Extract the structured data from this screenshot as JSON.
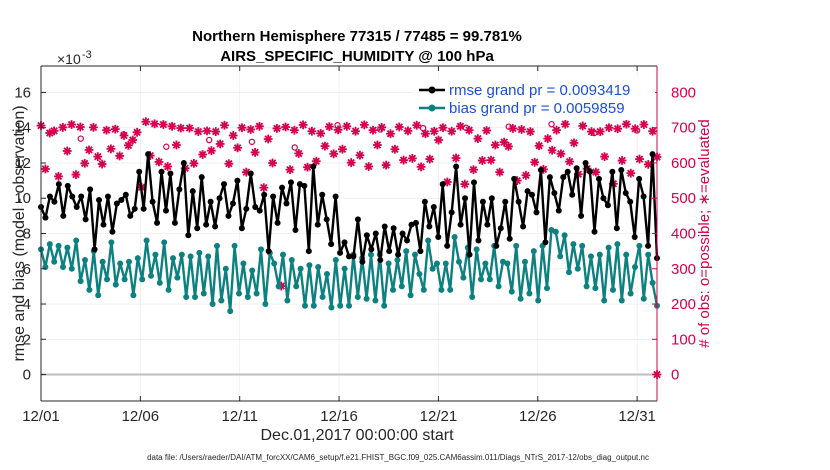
{
  "chart_data": {
    "type": "line",
    "title_line1": "Northern Hemisphere 77315 / 77485 = 99.781%",
    "title_line2": "AIRS_SPECIFIC_HUMIDITY @ 100 hPa",
    "xlabel": "Dec.01,2017 00:00:00 start",
    "ylabel": "rmse and bias (model - observation)",
    "ylabel_right": "# of obs: o=possible; ∗=evaluated",
    "y_exponent_base": "×10",
    "y_exponent": "-3",
    "footer": "data file: /Users/raeder/DAI/ATM_forcXX/CAM6_setup/f.e21.FHIST_BGC.f09_025.CAM6assim.011/Diags_NTrS_2017-12/obs_diag_output.nc",
    "x_ticks": [
      "12/01",
      "12/06",
      "12/11",
      "12/16",
      "12/21",
      "12/26",
      "12/31"
    ],
    "x_tick_days": [
      0,
      5,
      10,
      15,
      20,
      25,
      30
    ],
    "xlim": [
      0,
      31
    ],
    "y_ticks": [
      "0",
      "2",
      "4",
      "6",
      "8",
      "10",
      "12",
      "14",
      "16"
    ],
    "ylim": [
      -1.5,
      17.5
    ],
    "y2_ticks": [
      "0",
      "100",
      "200",
      "300",
      "400",
      "500",
      "600",
      "700",
      "800"
    ],
    "y2lim": [
      -75,
      875
    ],
    "colors": {
      "rmse": "#000000",
      "bias": "#0d8080",
      "obs": "#d6004e",
      "legend_text": "#1a4fd1",
      "zero_line": "#bdbdbd"
    },
    "series": [
      {
        "name": "rmse",
        "legend": "rmse grand pr = 0.0093419",
        "values": [
          9.5,
          8.9,
          10.1,
          9.8,
          10.8,
          9.0,
          10.7,
          10.1,
          9.5,
          10.1,
          8.8,
          10.5,
          7.1,
          9.9,
          8.5,
          10.1,
          8.1,
          9.7,
          9.9,
          10.2,
          9.0,
          9.4,
          11.5,
          9.4,
          12.5,
          9.8,
          8.6,
          11.5,
          9.3,
          11.4,
          8.6,
          10.5,
          12.0,
          7.9,
          10.4,
          8.3,
          11.2,
          8.5,
          9.8,
          8.4,
          10.0,
          10.8,
          9.0,
          9.7,
          11.0,
          8.3,
          9.4,
          11.4,
          9.5,
          9.3,
          10.2,
          7.0,
          10.1,
          8.6,
          10.6,
          9.7,
          10.9,
          8.2,
          10.8,
          10.7,
          7.0,
          11.8,
          8.5,
          10.2,
          8.8,
          7.4,
          10.1,
          6.9,
          7.5,
          6.7,
          6.7,
          8.8,
          6.4,
          7.9,
          7.1,
          8.0,
          6.5,
          8.4,
          7.0,
          8.3,
          6.8,
          8.0,
          7.6,
          8.5,
          8.6,
          7.0,
          9.8,
          8.4,
          9.5,
          7.8,
          10.8,
          7.3,
          9.2,
          11.8,
          8.5,
          10.0,
          6.8,
          10.9,
          7.6,
          9.8,
          8.5,
          10.0,
          7.3,
          8.3,
          9.8,
          7.7,
          11.1,
          9.8,
          8.4,
          10.4,
          10.2,
          9.2,
          11.6,
          7.5,
          11.2,
          10.3,
          9.3,
          11.2,
          11.5,
          10.2,
          11.7,
          9.0,
          12.0,
          11.5,
          8.1,
          11.1,
          10.0,
          9.6,
          11.5,
          8.3,
          11.6,
          10.3,
          9.8,
          7.8,
          11.1,
          10.1,
          7.3,
          12.5,
          6.6
        ]
      },
      {
        "name": "bias",
        "legend": "bias grand pr = 0.0059859",
        "values": [
          7.1,
          6.1,
          7.4,
          6.4,
          7.3,
          6.1,
          7.2,
          6.0,
          7.6,
          5.3,
          6.5,
          4.8,
          7.0,
          4.5,
          6.4,
          5.4,
          7.5,
          5.1,
          6.3,
          5.4,
          6.4,
          4.5,
          6.6,
          5.4,
          7.6,
          5.6,
          6.8,
          5.2,
          7.5,
          4.8,
          6.6,
          5.5,
          6.8,
          4.4,
          6.7,
          4.4,
          6.9,
          4.6,
          6.7,
          4.0,
          7.3,
          4.2,
          6.0,
          3.6,
          7.3,
          4.6,
          6.3,
          4.4,
          5.9,
          4.6,
          7.1,
          4.0,
          6.9,
          6.3,
          5.0,
          6.8,
          4.2,
          6.5,
          5.0,
          6.0,
          3.9,
          6.2,
          3.9,
          6.1,
          4.4,
          5.7,
          3.8,
          6.5,
          3.9,
          6.0,
          3.9,
          6.8,
          4.4,
          6.6,
          4.3,
          6.8,
          4.2,
          6.8,
          3.9,
          6.3,
          4.8,
          6.5,
          5.0,
          7.0,
          4.5,
          6.8,
          5.7,
          4.8,
          7.6,
          6.0,
          6.3,
          4.8,
          6.3,
          4.8,
          7.8,
          6.4,
          5.5,
          7.2,
          4.4,
          7.1,
          5.4,
          6.3,
          5.4,
          7.3,
          5.0,
          6.4,
          6.3,
          4.7,
          7.3,
          4.3,
          6.4,
          4.6,
          7.0,
          4.2,
          7.3,
          4.9,
          8.2,
          8.1,
          6.7,
          7.9,
          5.8,
          7.4,
          6.0,
          7.3,
          5.0,
          6.7,
          4.9,
          6.8,
          4.2,
          7.2,
          4.8,
          7.4,
          4.2,
          6.8,
          4.6,
          6.1,
          7.3,
          4.3,
          6.8,
          5.2,
          3.9
        ]
      }
    ],
    "obs_evaluated": [
      706,
      583,
      685,
      691,
      562,
      701,
      634,
      709,
      567,
      702,
      599,
      637,
      701,
      618,
      597,
      693,
      640,
      696,
      620,
      678,
      650,
      665,
      687,
      531,
      717,
      621,
      711,
      603,
      709,
      590,
      704,
      651,
      699,
      585,
      699,
      599,
      689,
      624,
      691,
      635,
      689,
      654,
      707,
      598,
      678,
      643,
      700,
      574,
      695,
      630,
      704,
      530,
      668,
      600,
      698,
      251,
      702,
      581,
      693,
      627,
      708,
      588,
      690,
      605,
      684,
      648,
      703,
      626,
      694,
      639,
      704,
      601,
      690,
      622,
      708,
      590,
      693,
      651,
      701,
      594,
      683,
      639,
      702,
      608,
      691,
      613,
      707,
      589,
      683,
      611,
      690,
      665,
      700,
      546,
      690,
      614,
      704,
      540,
      693,
      581,
      669,
      607,
      692,
      608,
      651,
      574,
      659,
      647,
      698,
      550,
      695,
      565,
      689,
      602,
      649,
      582,
      669,
      636,
      693,
      626,
      710,
      604,
      657,
      568,
      705,
      584,
      689,
      574,
      689,
      618,
      700,
      541,
      697,
      607,
      710,
      571,
      697,
      611,
      709,
      596,
      690,
      617
    ],
    "obs_possible": [
      669,
      681,
      646,
      665,
      660,
      644,
      707,
      695,
      699,
      700,
      703,
      710,
      685,
      692
    ],
    "obs_final_evaluated": 0
  }
}
